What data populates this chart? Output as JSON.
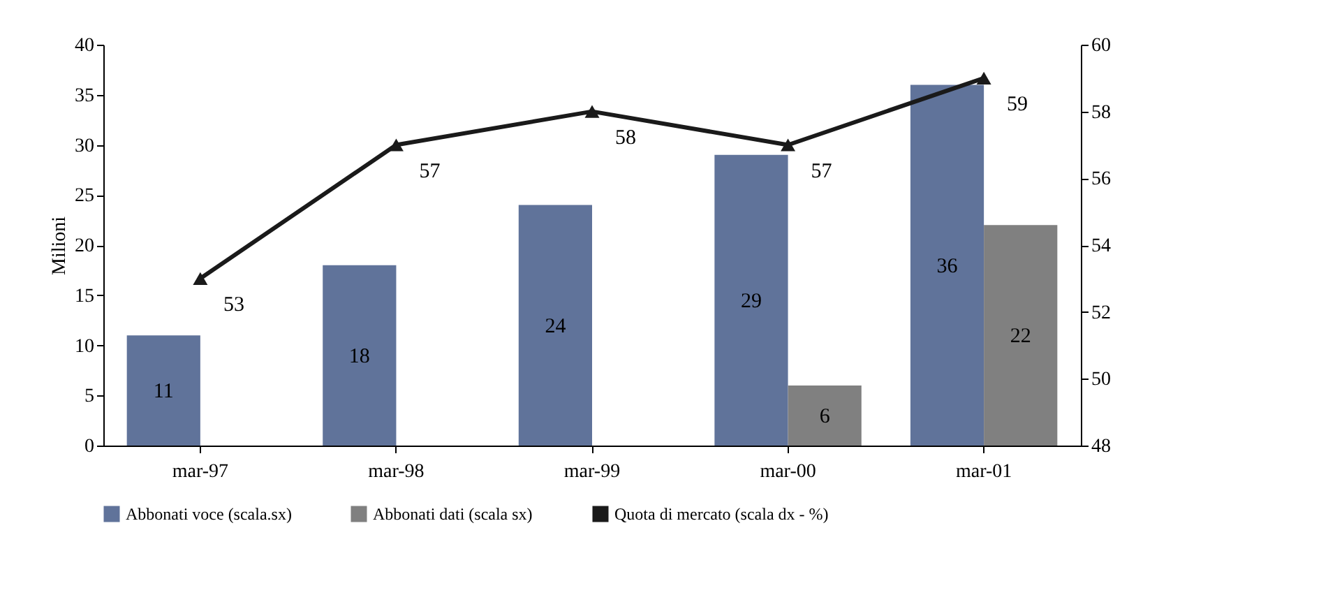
{
  "chart_data": {
    "type": "bar",
    "categories": [
      "mar-97",
      "mar-98",
      "mar-99",
      "mar-00",
      "mar-01"
    ],
    "series": [
      {
        "name": "Abbonati voce (scala.sx)",
        "color": "#60739a",
        "values": [
          11,
          18,
          24,
          29,
          36
        ]
      },
      {
        "name": "Abbonati dati (scala sx)",
        "color": "#808080",
        "values": [
          null,
          null,
          null,
          6,
          22
        ]
      },
      {
        "name": "Quota di mercato (scala dx - %)",
        "color": "#1a1a1a",
        "type": "line",
        "axis": "y2",
        "values": [
          53,
          57,
          58,
          57,
          59
        ]
      }
    ],
    "ylabel": "Milioni",
    "ylim": [
      0,
      40
    ],
    "yticks": [
      0,
      5,
      10,
      15,
      20,
      25,
      30,
      35,
      40
    ],
    "y2lim": [
      48,
      60
    ],
    "y2ticks": [
      48,
      50,
      52,
      54,
      56,
      58,
      60
    ],
    "data_labels": true,
    "legend": "bottom",
    "marker": "triangle",
    "line_style": "solid"
  }
}
